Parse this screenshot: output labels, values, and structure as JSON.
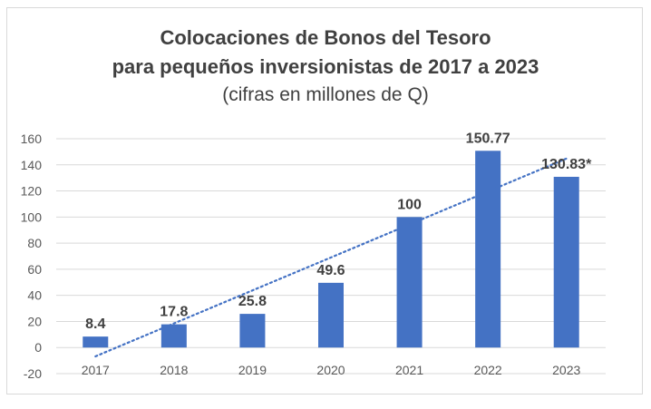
{
  "chart_data": {
    "type": "bar",
    "title": "Colocaciones de Bonos del Tesoro",
    "title_line2": "para pequeños inversionistas de 2017 a 2023",
    "subtitle": "(cifras en millones de Q)",
    "categories": [
      "2017",
      "2018",
      "2019",
      "2020",
      "2021",
      "2022",
      "2023"
    ],
    "values": [
      8.4,
      17.8,
      25.8,
      49.6,
      100,
      150.77,
      130.83
    ],
    "data_labels": [
      "8.4",
      "17.8",
      "25.8",
      "49.6",
      "100",
      "150.77",
      "130.83*"
    ],
    "ylim": [
      -20,
      160
    ],
    "yticks": [
      160,
      140,
      120,
      100,
      80,
      60,
      40,
      20,
      0,
      -20
    ],
    "grid": true,
    "trendline": "linear",
    "bar_color": "#4472c4",
    "trend_color": "#4472c4",
    "grid_color": "#d9d9d9"
  }
}
